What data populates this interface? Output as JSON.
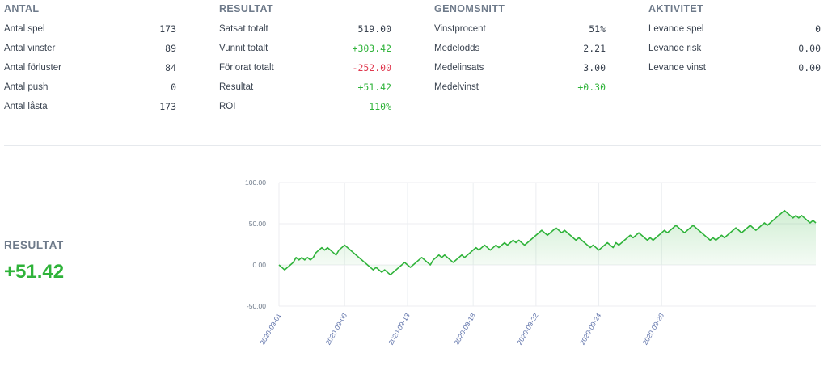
{
  "columns": [
    {
      "id": "antal",
      "header": "ANTAL",
      "rows": [
        {
          "label": "Antal spel",
          "value": "173",
          "tone": ""
        },
        {
          "label": "Antal vinster",
          "value": "89",
          "tone": ""
        },
        {
          "label": "Antal förluster",
          "value": "84",
          "tone": ""
        },
        {
          "label": "Antal push",
          "value": "0",
          "tone": ""
        },
        {
          "label": "Antal låsta",
          "value": "173",
          "tone": ""
        }
      ]
    },
    {
      "id": "resultat",
      "header": "RESULTAT",
      "rows": [
        {
          "label": "Satsat totalt",
          "value": "519.00",
          "tone": ""
        },
        {
          "label": "Vunnit totalt",
          "value": "+303.42",
          "tone": "pos"
        },
        {
          "label": "Förlorat totalt",
          "value": "-252.00",
          "tone": "neg"
        },
        {
          "label": "Resultat",
          "value": "+51.42",
          "tone": "pos"
        },
        {
          "label": "ROI",
          "value": "110%",
          "tone": "pos"
        }
      ]
    },
    {
      "id": "genomsnitt",
      "header": "GENOMSNITT",
      "rows": [
        {
          "label": "Vinstprocent",
          "value": "51%",
          "tone": ""
        },
        {
          "label": "Medelodds",
          "value": "2.21",
          "tone": ""
        },
        {
          "label": "Medelinsats",
          "value": "3.00",
          "tone": ""
        },
        {
          "label": "Medelvinst",
          "value": "+0.30",
          "tone": "pos"
        }
      ]
    },
    {
      "id": "aktivitet",
      "header": "AKTIVITET",
      "rows": [
        {
          "label": "Levande spel",
          "value": "0",
          "tone": ""
        },
        {
          "label": "Levande risk",
          "value": "0.00",
          "tone": ""
        },
        {
          "label": "Levande vinst",
          "value": "0.00",
          "tone": ""
        }
      ]
    }
  ],
  "summary": {
    "title": "RESULTAT",
    "value": "+51.42"
  },
  "colors": {
    "positive": "#2fb33a",
    "negative": "#e0394f",
    "line": "#2fb33a",
    "area": "#2fb33a",
    "grid": "#eceef1"
  },
  "chart_data": {
    "type": "area",
    "ylim": [
      -50,
      100
    ],
    "yticks": [
      "100.00",
      "50.00",
      "0.00",
      "-50.00"
    ],
    "ytick_values": [
      100,
      50,
      0,
      -50
    ],
    "xticks": [
      "2020-09-01",
      "2020-09-08",
      "2020-09-13",
      "2020-09-18",
      "2020-09-22",
      "2020-09-24",
      "2020-09-28"
    ],
    "xtick_index": [
      0,
      23,
      45,
      68,
      90,
      112,
      134
    ],
    "grid": true,
    "series": [
      {
        "values": [
          0,
          -3,
          -6,
          -3,
          0,
          3,
          9,
          6,
          9,
          6,
          9,
          6,
          9,
          15,
          18,
          21,
          18,
          21,
          18,
          15,
          12,
          18,
          21,
          24,
          21,
          18,
          15,
          12,
          9,
          6,
          3,
          0,
          -3,
          -6,
          -3,
          -6,
          -9,
          -6,
          -9,
          -12,
          -9,
          -6,
          -3,
          0,
          3,
          0,
          -3,
          0,
          3,
          6,
          9,
          6,
          3,
          0,
          6,
          9,
          12,
          9,
          12,
          9,
          6,
          3,
          6,
          9,
          12,
          9,
          12,
          15,
          18,
          21,
          18,
          21,
          24,
          21,
          18,
          21,
          24,
          21,
          24,
          27,
          24,
          27,
          30,
          27,
          30,
          27,
          24,
          27,
          30,
          33,
          36,
          39,
          42,
          39,
          36,
          39,
          42,
          45,
          42,
          39,
          42,
          39,
          36,
          33,
          30,
          33,
          30,
          27,
          24,
          21,
          24,
          21,
          18,
          21,
          24,
          27,
          24,
          21,
          27,
          24,
          27,
          30,
          33,
          36,
          33,
          36,
          39,
          36,
          33,
          30,
          33,
          30,
          33,
          36,
          39,
          42,
          39,
          42,
          45,
          48,
          45,
          42,
          39,
          42,
          45,
          48,
          45,
          42,
          39,
          36,
          33,
          30,
          33,
          30,
          33,
          36,
          33,
          36,
          39,
          42,
          45,
          42,
          39,
          42,
          45,
          48,
          45,
          42,
          45,
          48,
          51,
          48,
          51,
          54,
          57,
          60,
          63,
          66,
          63,
          60,
          57,
          60,
          57,
          60,
          57,
          54,
          51,
          54,
          51
        ]
      }
    ]
  }
}
